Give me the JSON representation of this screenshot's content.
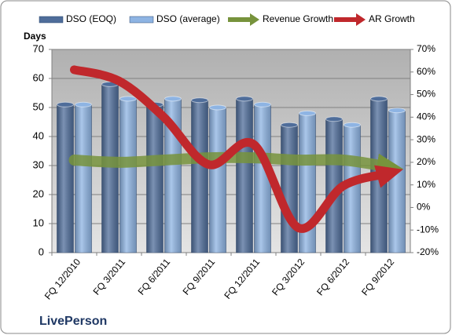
{
  "chart_data": {
    "type": "bar",
    "ylabel": "Days",
    "brand": "LivePerson",
    "categories": [
      "FQ 12/2010",
      "FQ 3/2011",
      "FQ 6/2011",
      "FQ 9/2011",
      "FQ 12/2011",
      "FQ 3/2012",
      "FQ 6/2012",
      "FQ 9/2012"
    ],
    "series": [
      {
        "name": "DSO (EOQ)",
        "type": "bar",
        "color": "#4f6d9a",
        "values": [
          51,
          58,
          51,
          52.5,
          53,
          44,
          46,
          53
        ]
      },
      {
        "name": "DSO (average)",
        "type": "bar",
        "color": "#8eb4e3",
        "values": [
          51,
          53,
          53,
          50,
          51,
          48,
          44,
          49
        ]
      },
      {
        "name": "Revenue Growth",
        "type": "line",
        "axis": "y2",
        "color": "#77933c",
        "values": [
          21,
          20,
          21,
          22,
          22,
          21,
          21,
          18
        ]
      },
      {
        "name": "AR Growth",
        "type": "line",
        "axis": "y2",
        "color": "#c0282c",
        "values": [
          61,
          56,
          40,
          19,
          28,
          -9,
          9.5,
          15
        ]
      }
    ],
    "ylim": [
      0,
      70
    ],
    "yticks": [
      0,
      10,
      20,
      30,
      40,
      50,
      60,
      70
    ],
    "y2lim": [
      -20,
      70
    ],
    "y2ticks": [
      {
        "value": -20,
        "label": "-20%"
      },
      {
        "value": -10,
        "label": "-10%"
      },
      {
        "value": 0,
        "label": "0%"
      },
      {
        "value": 10,
        "label": "10%"
      },
      {
        "value": 20,
        "label": "20%"
      },
      {
        "value": 30,
        "label": "30%"
      },
      {
        "value": 40,
        "label": "40%"
      },
      {
        "value": 50,
        "label": "50%"
      },
      {
        "value": 60,
        "label": "60%"
      },
      {
        "value": 70,
        "label": "70%"
      }
    ],
    "grid": true
  }
}
